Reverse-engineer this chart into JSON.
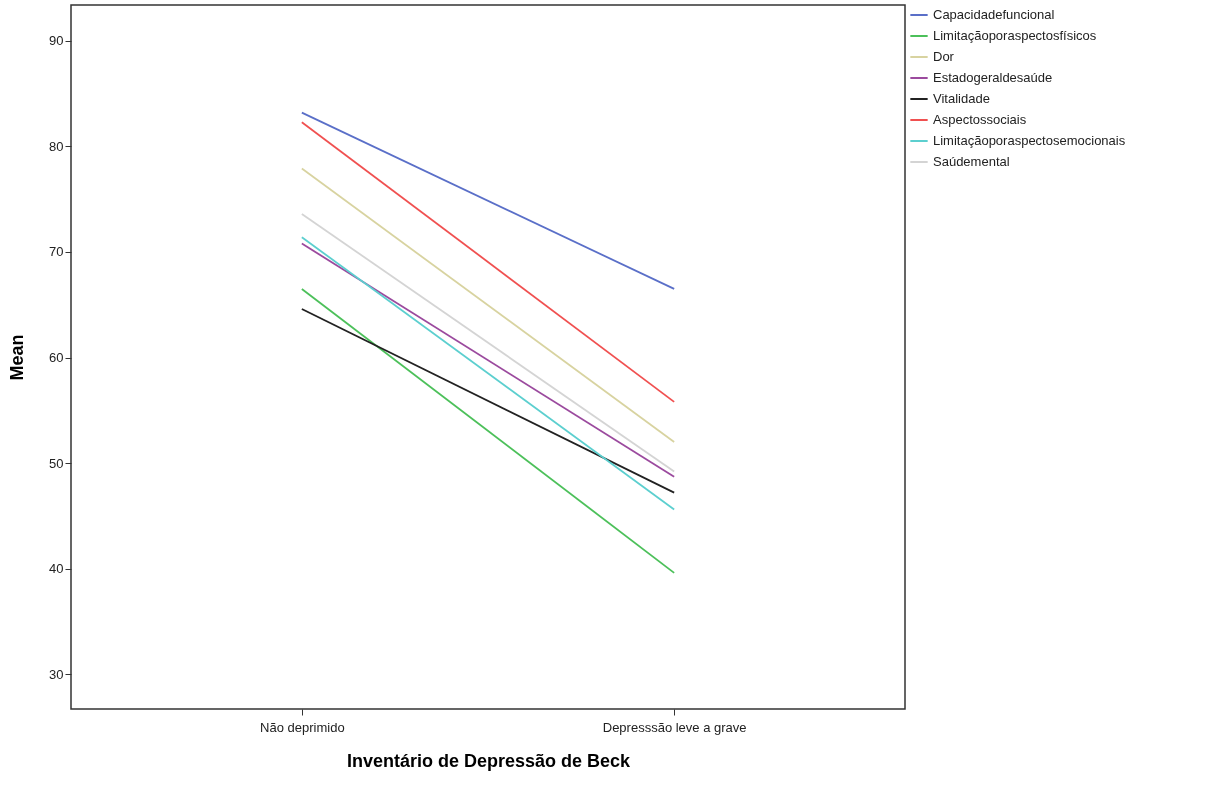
{
  "chart_data": {
    "type": "line",
    "xlabel": "Inventário de Depressão de Beck",
    "ylabel": "Mean",
    "categories": [
      "Não deprimido",
      "Depresssão leve a grave"
    ],
    "series": [
      {
        "name": "Capacidadefuncional",
        "color": "#5a6fc8",
        "values": [
          83.2,
          66.5
        ]
      },
      {
        "name": "Limitaçãoporaspectosfísicos",
        "color": "#4cc05a",
        "values": [
          66.5,
          39.6
        ]
      },
      {
        "name": "Dor",
        "color": "#d8d3a0",
        "values": [
          77.9,
          52.0
        ]
      },
      {
        "name": "Estadogeraldesaúde",
        "color": "#9b4a9e",
        "values": [
          70.8,
          48.7
        ]
      },
      {
        "name": "Vitalidade",
        "color": "#222222",
        "values": [
          64.6,
          47.2
        ]
      },
      {
        "name": "Aspectossociais",
        "color": "#f05050",
        "values": [
          82.3,
          55.8
        ]
      },
      {
        "name": "Limitaçãoporaspectosemocionais",
        "color": "#5ccfcf",
        "values": [
          71.4,
          45.6
        ]
      },
      {
        "name": "Saúdemental",
        "color": "#d4d4d4",
        "values": [
          73.6,
          49.2
        ]
      }
    ],
    "ylim": [
      26.7,
      93.4
    ],
    "yticks": [
      30,
      40,
      50,
      60,
      70,
      80,
      90
    ],
    "grid": false,
    "legend": "top right"
  }
}
